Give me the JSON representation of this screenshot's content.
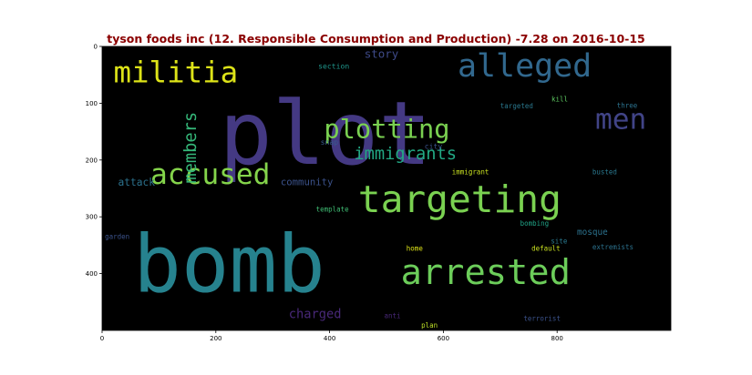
{
  "chart_data": {
    "type": "wordcloud",
    "title": "tyson foods inc (12. Responsible Consumption and Production) -7.28 on 2016-10-15",
    "xlim": [
      0,
      1000
    ],
    "ylim": [
      500,
      0
    ],
    "x_ticks": [
      0,
      200,
      400,
      600,
      800
    ],
    "y_ticks": [
      0,
      100,
      200,
      300,
      400
    ],
    "words": [
      {
        "text": "plot",
        "x": 206,
        "y": 207,
        "size": 155,
        "color": "#443983"
      },
      {
        "text": "bomb",
        "x": 55,
        "y": 432,
        "size": 140,
        "color": "#26828e"
      },
      {
        "text": "alleged",
        "x": 625,
        "y": 53,
        "size": 56,
        "color": "#31688e"
      },
      {
        "text": "targeting",
        "x": 450,
        "y": 292,
        "size": 66,
        "color": "#7ad151"
      },
      {
        "text": "arrested",
        "x": 525,
        "y": 418,
        "size": 62,
        "color": "#6ccd5a"
      },
      {
        "text": "militia",
        "x": 20,
        "y": 63,
        "size": 52,
        "color": "#dde318"
      },
      {
        "text": "accused",
        "x": 85,
        "y": 242,
        "size": 50,
        "color": "#84d44b"
      },
      {
        "text": "plotting",
        "x": 390,
        "y": 161,
        "size": 46,
        "color": "#7ad151"
      },
      {
        "text": "men",
        "x": 867,
        "y": 145,
        "size": 50,
        "color": "#414487"
      },
      {
        "text": "immigrants",
        "x": 443,
        "y": 199,
        "size": 30,
        "color": "#22a884"
      },
      {
        "text": "members",
        "x": 165,
        "y": 115,
        "size": 30,
        "color": "#35b779",
        "vertical": true
      },
      {
        "text": "charged",
        "x": 328,
        "y": 478,
        "size": 22,
        "color": "#482878"
      },
      {
        "text": "story",
        "x": 461,
        "y": 20,
        "size": 20,
        "color": "#3e4a89"
      },
      {
        "text": "attack",
        "x": 28,
        "y": 245,
        "size": 18,
        "color": "#2c728e"
      },
      {
        "text": "community",
        "x": 314,
        "y": 244,
        "size": 17,
        "color": "#3b528b"
      },
      {
        "text": "section",
        "x": 380,
        "y": 39,
        "size": 13,
        "color": "#1f968b"
      },
      {
        "text": "targeted",
        "x": 700,
        "y": 109,
        "size": 12,
        "color": "#2a788e"
      },
      {
        "text": "kill",
        "x": 790,
        "y": 97,
        "size": 12,
        "color": "#5ec962"
      },
      {
        "text": "three",
        "x": 905,
        "y": 108,
        "size": 12,
        "color": "#2c728e"
      },
      {
        "text": "snap",
        "x": 384,
        "y": 173,
        "size": 13,
        "color": "#375a8c"
      },
      {
        "text": "city",
        "x": 567,
        "y": 180,
        "size": 13,
        "color": "#3b528b"
      },
      {
        "text": "immigrant",
        "x": 615,
        "y": 225,
        "size": 12,
        "color": "#c8e020"
      },
      {
        "text": "busted",
        "x": 862,
        "y": 225,
        "size": 12,
        "color": "#2a788e"
      },
      {
        "text": "template",
        "x": 376,
        "y": 291,
        "size": 12,
        "color": "#3fbc73"
      },
      {
        "text": "bombing",
        "x": 735,
        "y": 316,
        "size": 12,
        "color": "#20a386"
      },
      {
        "text": "mosque",
        "x": 835,
        "y": 332,
        "size": 15,
        "color": "#2c728e"
      },
      {
        "text": "garden",
        "x": 5,
        "y": 339,
        "size": 12,
        "color": "#3b528b"
      },
      {
        "text": "site",
        "x": 789,
        "y": 347,
        "size": 12,
        "color": "#2a788e"
      },
      {
        "text": "home",
        "x": 535,
        "y": 360,
        "size": 12,
        "color": "#dde318"
      },
      {
        "text": "default",
        "x": 755,
        "y": 360,
        "size": 12,
        "color": "#c8e020"
      },
      {
        "text": "extremists",
        "x": 862,
        "y": 357,
        "size": 12,
        "color": "#2c728e"
      },
      {
        "text": "anti",
        "x": 496,
        "y": 478,
        "size": 12,
        "color": "#482878"
      },
      {
        "text": "plan",
        "x": 561,
        "y": 495,
        "size": 12,
        "color": "#bddf26"
      },
      {
        "text": "terrorist",
        "x": 741,
        "y": 483,
        "size": 12,
        "color": "#3b528b"
      }
    ]
  }
}
